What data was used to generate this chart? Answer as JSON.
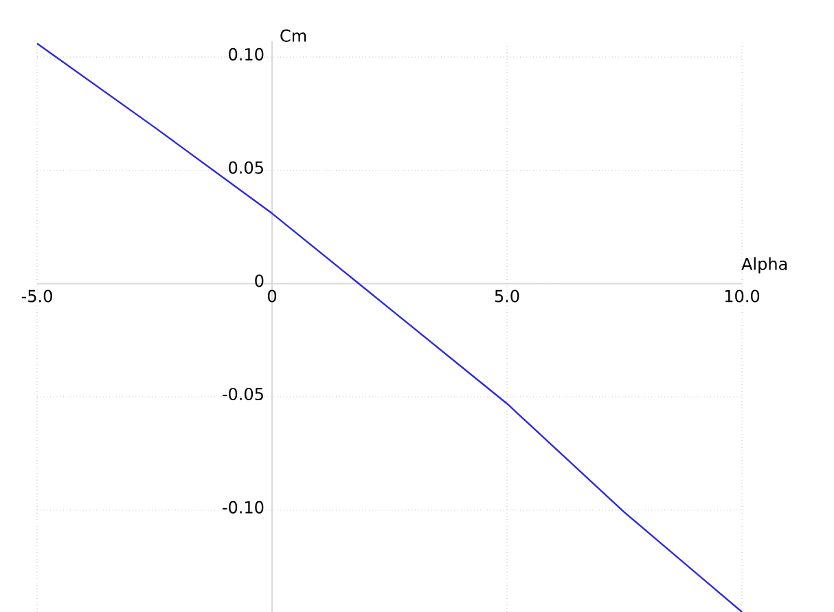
{
  "chart_data": {
    "type": "line",
    "xlabel": "Alpha",
    "ylabel": "Cm",
    "series": [
      {
        "color": "#2a2ae0",
        "x": [
          -5,
          -2.5,
          0,
          2.5,
          5,
          7.5,
          10
        ],
        "values": [
          0.106,
          0.069,
          0.031,
          -0.011,
          -0.053,
          -0.101,
          -0.145
        ]
      }
    ],
    "xlim": [
      -5,
      10
    ],
    "ylim": [
      -0.145,
      0.107
    ],
    "xticks": [
      {
        "value": -5,
        "label": "-5.0"
      },
      {
        "value": 0,
        "label": "0"
      },
      {
        "value": 5,
        "label": "5.0"
      },
      {
        "value": 10,
        "label": "10.0"
      }
    ],
    "yticks": [
      {
        "value": 0.1,
        "label": "0.10"
      },
      {
        "value": 0.05,
        "label": "0.05"
      },
      {
        "value": 0,
        "label": "0"
      },
      {
        "value": -0.05,
        "label": "-0.05"
      },
      {
        "value": -0.1,
        "label": "-0.10"
      }
    ],
    "grid": true,
    "marker": "none",
    "line_style": "solid"
  }
}
